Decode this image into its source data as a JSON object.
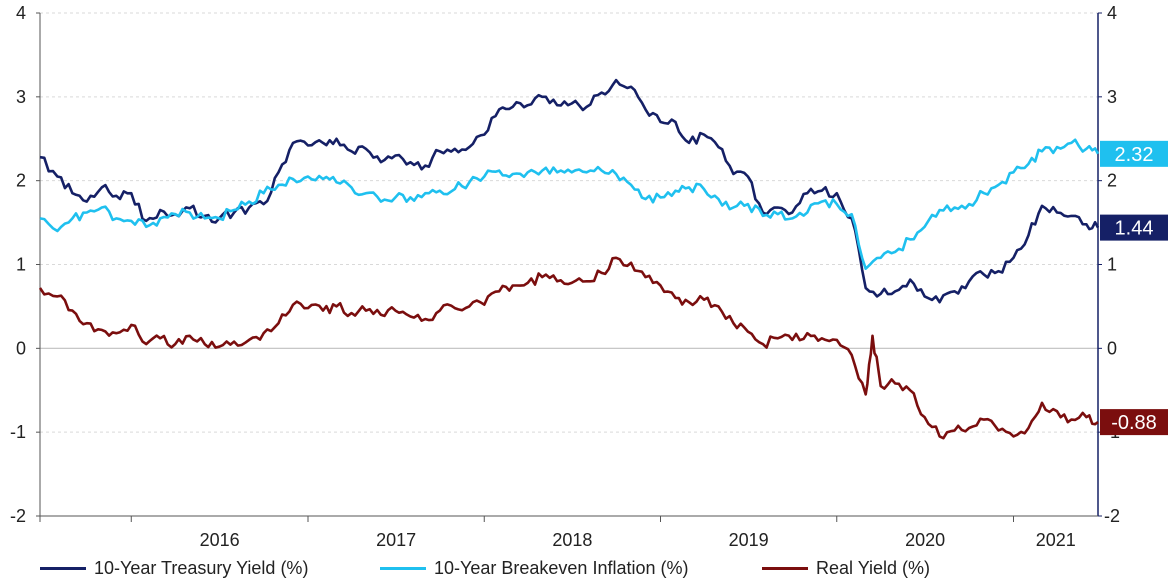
{
  "chart_data": {
    "type": "line",
    "x_ticks": [
      "2016",
      "2017",
      "2018",
      "2019",
      "2020",
      "2021"
    ],
    "ylim": [
      -2,
      4
    ],
    "yticks_left": [
      "-2",
      "-1",
      "0",
      "1",
      "2",
      "3",
      "4"
    ],
    "yticks_right": [
      "-2",
      "-1",
      "0",
      "1",
      "2",
      "3",
      "4"
    ],
    "grid": "horizontal dashed",
    "legend_position": "bottom",
    "series": [
      {
        "name": "10-Year Treasury Yield (%)",
        "color": "#152066",
        "last_label": "1.44",
        "points": [
          [
            "2015-06-26",
            2.28
          ],
          [
            "2015-08-01",
            2.05
          ],
          [
            "2015-09-01",
            1.85
          ],
          [
            "2015-10-01",
            1.75
          ],
          [
            "2015-11-01",
            1.92
          ],
          [
            "2015-12-01",
            1.82
          ],
          [
            "2016-01-01",
            1.85
          ],
          [
            "2016-02-01",
            1.52
          ],
          [
            "2016-03-01",
            1.65
          ],
          [
            "2016-04-01",
            1.6
          ],
          [
            "2016-05-01",
            1.67
          ],
          [
            "2016-06-01",
            1.58
          ],
          [
            "2016-07-01",
            1.55
          ],
          [
            "2016-08-01",
            1.62
          ],
          [
            "2016-09-01",
            1.68
          ],
          [
            "2016-10-01",
            1.72
          ],
          [
            "2016-11-01",
            2.1
          ],
          [
            "2016-12-01",
            2.45
          ],
          [
            "2017-01-01",
            2.42
          ],
          [
            "2017-02-01",
            2.45
          ],
          [
            "2017-03-01",
            2.5
          ],
          [
            "2017-04-01",
            2.35
          ],
          [
            "2017-05-01",
            2.38
          ],
          [
            "2017-06-01",
            2.22
          ],
          [
            "2017-07-01",
            2.3
          ],
          [
            "2017-08-01",
            2.22
          ],
          [
            "2017-09-01",
            2.18
          ],
          [
            "2017-10-01",
            2.35
          ],
          [
            "2017-11-01",
            2.38
          ],
          [
            "2017-12-01",
            2.4
          ],
          [
            "2018-01-01",
            2.55
          ],
          [
            "2018-02-01",
            2.85
          ],
          [
            "2018-03-01",
            2.88
          ],
          [
            "2018-04-01",
            2.9
          ],
          [
            "2018-05-01",
            3.0
          ],
          [
            "2018-06-01",
            2.9
          ],
          [
            "2018-07-01",
            2.92
          ],
          [
            "2018-08-01",
            2.88
          ],
          [
            "2018-09-01",
            3.05
          ],
          [
            "2018-10-01",
            3.2
          ],
          [
            "2018-11-01",
            3.12
          ],
          [
            "2018-12-01",
            2.85
          ],
          [
            "2019-01-01",
            2.7
          ],
          [
            "2019-02-01",
            2.7
          ],
          [
            "2019-03-01",
            2.45
          ],
          [
            "2019-04-01",
            2.55
          ],
          [
            "2019-05-01",
            2.4
          ],
          [
            "2019-06-01",
            2.08
          ],
          [
            "2019-07-01",
            2.05
          ],
          [
            "2019-08-01",
            1.62
          ],
          [
            "2019-09-01",
            1.68
          ],
          [
            "2019-10-01",
            1.62
          ],
          [
            "2019-11-01",
            1.85
          ],
          [
            "2019-12-01",
            1.88
          ],
          [
            "2020-01-01",
            1.85
          ],
          [
            "2020-02-01",
            1.55
          ],
          [
            "2020-03-01",
            0.72
          ],
          [
            "2020-04-01",
            0.65
          ],
          [
            "2020-05-01",
            0.68
          ],
          [
            "2020-06-01",
            0.82
          ],
          [
            "2020-07-01",
            0.62
          ],
          [
            "2020-08-01",
            0.55
          ],
          [
            "2020-09-01",
            0.68
          ],
          [
            "2020-10-01",
            0.8
          ],
          [
            "2020-11-01",
            0.88
          ],
          [
            "2020-12-01",
            0.92
          ],
          [
            "2021-01-01",
            1.08
          ],
          [
            "2021-02-01",
            1.35
          ],
          [
            "2021-03-01",
            1.7
          ],
          [
            "2021-04-01",
            1.62
          ],
          [
            "2021-05-01",
            1.58
          ],
          [
            "2021-06-01",
            1.48
          ],
          [
            "2021-06-25",
            1.44
          ]
        ]
      },
      {
        "name": "10-Year Breakeven Inflation (%)",
        "color": "#1fc0ef",
        "last_label": "2.32",
        "points": [
          [
            "2015-06-26",
            1.55
          ],
          [
            "2015-08-01",
            1.4
          ],
          [
            "2015-09-01",
            1.55
          ],
          [
            "2015-10-01",
            1.62
          ],
          [
            "2015-11-01",
            1.68
          ],
          [
            "2015-12-01",
            1.55
          ],
          [
            "2016-01-01",
            1.52
          ],
          [
            "2016-02-01",
            1.45
          ],
          [
            "2016-03-01",
            1.55
          ],
          [
            "2016-04-01",
            1.6
          ],
          [
            "2016-05-01",
            1.62
          ],
          [
            "2016-06-01",
            1.55
          ],
          [
            "2016-07-01",
            1.55
          ],
          [
            "2016-08-01",
            1.65
          ],
          [
            "2016-09-01",
            1.75
          ],
          [
            "2016-10-01",
            1.85
          ],
          [
            "2016-11-01",
            1.95
          ],
          [
            "2016-12-01",
            2.02
          ],
          [
            "2017-01-01",
            2.05
          ],
          [
            "2017-02-01",
            2.02
          ],
          [
            "2017-03-01",
            1.98
          ],
          [
            "2017-04-01",
            1.92
          ],
          [
            "2017-05-01",
            1.85
          ],
          [
            "2017-06-01",
            1.75
          ],
          [
            "2017-07-01",
            1.8
          ],
          [
            "2017-08-01",
            1.8
          ],
          [
            "2017-09-01",
            1.85
          ],
          [
            "2017-10-01",
            1.88
          ],
          [
            "2017-11-01",
            1.9
          ],
          [
            "2017-12-01",
            1.98
          ],
          [
            "2018-01-01",
            2.05
          ],
          [
            "2018-02-01",
            2.12
          ],
          [
            "2018-03-01",
            2.08
          ],
          [
            "2018-04-01",
            2.1
          ],
          [
            "2018-05-01",
            2.12
          ],
          [
            "2018-06-01",
            2.1
          ],
          [
            "2018-07-01",
            2.1
          ],
          [
            "2018-08-01",
            2.1
          ],
          [
            "2018-09-01",
            2.12
          ],
          [
            "2018-10-01",
            2.08
          ],
          [
            "2018-11-01",
            1.95
          ],
          [
            "2018-12-01",
            1.78
          ],
          [
            "2019-01-01",
            1.8
          ],
          [
            "2019-02-01",
            1.88
          ],
          [
            "2019-03-01",
            1.92
          ],
          [
            "2019-04-01",
            1.9
          ],
          [
            "2019-05-01",
            1.78
          ],
          [
            "2019-06-01",
            1.68
          ],
          [
            "2019-07-01",
            1.72
          ],
          [
            "2019-08-01",
            1.58
          ],
          [
            "2019-09-01",
            1.6
          ],
          [
            "2019-10-01",
            1.55
          ],
          [
            "2019-11-01",
            1.62
          ],
          [
            "2019-12-01",
            1.75
          ],
          [
            "2020-01-01",
            1.72
          ],
          [
            "2020-02-01",
            1.6
          ],
          [
            "2020-03-01",
            0.95
          ],
          [
            "2020-04-01",
            1.08
          ],
          [
            "2020-05-01",
            1.15
          ],
          [
            "2020-06-01",
            1.3
          ],
          [
            "2020-07-01",
            1.45
          ],
          [
            "2020-08-01",
            1.65
          ],
          [
            "2020-09-01",
            1.68
          ],
          [
            "2020-10-01",
            1.72
          ],
          [
            "2020-11-01",
            1.85
          ],
          [
            "2020-12-01",
            1.95
          ],
          [
            "2021-01-01",
            2.1
          ],
          [
            "2021-02-01",
            2.2
          ],
          [
            "2021-03-01",
            2.35
          ],
          [
            "2021-04-01",
            2.4
          ],
          [
            "2021-05-01",
            2.45
          ],
          [
            "2021-06-01",
            2.38
          ],
          [
            "2021-06-25",
            2.32
          ]
        ]
      },
      {
        "name": "Real Yield (%)",
        "color": "#7b0e0e",
        "last_label": "-0.88",
        "points": [
          [
            "2015-06-26",
            0.72
          ],
          [
            "2015-08-01",
            0.62
          ],
          [
            "2015-09-01",
            0.45
          ],
          [
            "2015-10-01",
            0.3
          ],
          [
            "2015-11-01",
            0.22
          ],
          [
            "2015-12-01",
            0.18
          ],
          [
            "2016-01-01",
            0.28
          ],
          [
            "2016-02-01",
            0.05
          ],
          [
            "2016-03-01",
            0.12
          ],
          [
            "2016-04-01",
            0.05
          ],
          [
            "2016-05-01",
            0.15
          ],
          [
            "2016-06-01",
            0.05
          ],
          [
            "2016-07-01",
            0.02
          ],
          [
            "2016-08-01",
            0.08
          ],
          [
            "2016-09-01",
            0.1
          ],
          [
            "2016-10-01",
            0.18
          ],
          [
            "2016-11-01",
            0.3
          ],
          [
            "2016-12-01",
            0.52
          ],
          [
            "2017-01-01",
            0.48
          ],
          [
            "2017-02-01",
            0.45
          ],
          [
            "2017-03-01",
            0.5
          ],
          [
            "2017-04-01",
            0.42
          ],
          [
            "2017-05-01",
            0.45
          ],
          [
            "2017-06-01",
            0.4
          ],
          [
            "2017-07-01",
            0.45
          ],
          [
            "2017-08-01",
            0.38
          ],
          [
            "2017-09-01",
            0.35
          ],
          [
            "2017-10-01",
            0.45
          ],
          [
            "2017-11-01",
            0.48
          ],
          [
            "2017-12-01",
            0.5
          ],
          [
            "2018-01-01",
            0.52
          ],
          [
            "2018-02-01",
            0.68
          ],
          [
            "2018-03-01",
            0.75
          ],
          [
            "2018-04-01",
            0.78
          ],
          [
            "2018-05-01",
            0.85
          ],
          [
            "2018-06-01",
            0.8
          ],
          [
            "2018-07-01",
            0.78
          ],
          [
            "2018-08-01",
            0.8
          ],
          [
            "2018-09-01",
            0.9
          ],
          [
            "2018-10-01",
            1.08
          ],
          [
            "2018-11-01",
            1.02
          ],
          [
            "2018-12-01",
            0.85
          ],
          [
            "2019-01-01",
            0.75
          ],
          [
            "2019-02-01",
            0.6
          ],
          [
            "2019-03-01",
            0.55
          ],
          [
            "2019-04-01",
            0.58
          ],
          [
            "2019-05-01",
            0.5
          ],
          [
            "2019-06-01",
            0.3
          ],
          [
            "2019-07-01",
            0.2
          ],
          [
            "2019-08-01",
            0.05
          ],
          [
            "2019-09-01",
            0.12
          ],
          [
            "2019-10-01",
            0.1
          ],
          [
            "2019-11-01",
            0.18
          ],
          [
            "2019-12-01",
            0.12
          ],
          [
            "2020-01-01",
            0.1
          ],
          [
            "2020-02-01",
            -0.08
          ],
          [
            "2020-03-01",
            -0.55
          ],
          [
            "2020-03-15",
            0.15
          ],
          [
            "2020-04-01",
            -0.45
          ],
          [
            "2020-05-01",
            -0.42
          ],
          [
            "2020-06-01",
            -0.5
          ],
          [
            "2020-07-01",
            -0.82
          ],
          [
            "2020-08-01",
            -1.05
          ],
          [
            "2020-09-01",
            -0.98
          ],
          [
            "2020-10-01",
            -0.95
          ],
          [
            "2020-11-01",
            -0.85
          ],
          [
            "2020-12-01",
            -0.98
          ],
          [
            "2021-01-01",
            -1.05
          ],
          [
            "2021-02-01",
            -0.95
          ],
          [
            "2021-03-01",
            -0.65
          ],
          [
            "2021-04-01",
            -0.75
          ],
          [
            "2021-05-01",
            -0.85
          ],
          [
            "2021-06-01",
            -0.82
          ],
          [
            "2021-06-25",
            -0.88
          ]
        ]
      }
    ]
  }
}
